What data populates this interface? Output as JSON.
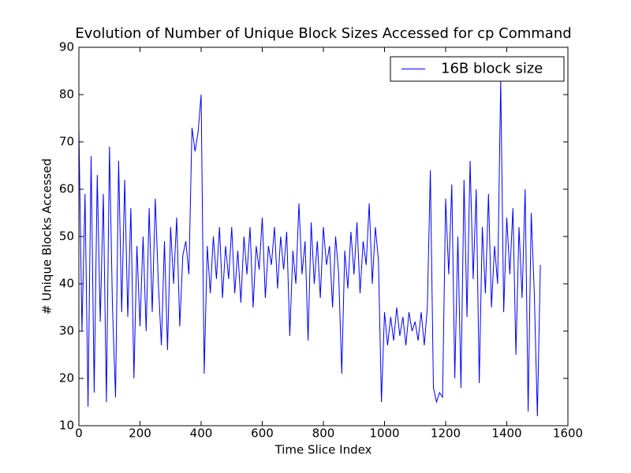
{
  "chart_data": {
    "type": "line",
    "title": "Evolution of Number of Unique Block Sizes Accessed for cp Command",
    "xlabel": "Time Slice Index",
    "ylabel": "# Unique Blocks Accessed",
    "x": [
      0,
      10,
      20,
      30,
      40,
      50,
      60,
      70,
      80,
      90,
      100,
      110,
      120,
      130,
      140,
      150,
      160,
      170,
      180,
      190,
      200,
      210,
      220,
      230,
      240,
      250,
      260,
      270,
      280,
      290,
      300,
      310,
      320,
      330,
      340,
      350,
      360,
      370,
      380,
      390,
      400,
      410,
      420,
      430,
      440,
      450,
      460,
      470,
      480,
      490,
      500,
      510,
      520,
      530,
      540,
      550,
      560,
      570,
      580,
      590,
      600,
      610,
      620,
      630,
      640,
      650,
      660,
      670,
      680,
      690,
      700,
      710,
      720,
      730,
      740,
      750,
      760,
      770,
      780,
      790,
      800,
      810,
      820,
      830,
      840,
      850,
      860,
      870,
      880,
      890,
      900,
      910,
      920,
      930,
      940,
      950,
      960,
      970,
      980,
      990,
      1000,
      1010,
      1020,
      1030,
      1040,
      1050,
      1060,
      1070,
      1080,
      1090,
      1100,
      1110,
      1120,
      1130,
      1140,
      1150,
      1160,
      1170,
      1180,
      1190,
      1200,
      1210,
      1220,
      1230,
      1240,
      1250,
      1260,
      1270,
      1280,
      1290,
      1300,
      1310,
      1320,
      1330,
      1340,
      1350,
      1360,
      1370,
      1380,
      1390,
      1400,
      1410,
      1420,
      1430,
      1440,
      1450,
      1460,
      1470,
      1480,
      1490,
      1500,
      1510
    ],
    "series": [
      {
        "name": "16B block size",
        "color": "#0000ff",
        "values": [
          73,
          30,
          59,
          14,
          67,
          17,
          63,
          32,
          59,
          15,
          69,
          35,
          16,
          66,
          34,
          62,
          33,
          56,
          20,
          48,
          31,
          50,
          30,
          56,
          34,
          58,
          40,
          27,
          49,
          26,
          52,
          40,
          54,
          31,
          46,
          49,
          42,
          73,
          68,
          72,
          80,
          21,
          48,
          38,
          50,
          41,
          52,
          37,
          48,
          41,
          52,
          38,
          47,
          36,
          50,
          42,
          52,
          35,
          48,
          43,
          54,
          37,
          48,
          44,
          52,
          39,
          50,
          43,
          51,
          29,
          47,
          40,
          57,
          42,
          49,
          28,
          53,
          40,
          49,
          37,
          52,
          44,
          48,
          35,
          50,
          42,
          21,
          47,
          39,
          51,
          42,
          53,
          38,
          49,
          44,
          57,
          40,
          52,
          45,
          15,
          34,
          27,
          33,
          28,
          35,
          29,
          33,
          27,
          34,
          30,
          32,
          28,
          34,
          27,
          35,
          64,
          18,
          15,
          17,
          16,
          58,
          42,
          61,
          20,
          50,
          18,
          62,
          33,
          66,
          41,
          60,
          19,
          52,
          38,
          59,
          35,
          48,
          40,
          83,
          34,
          54,
          42,
          56,
          25,
          52,
          37,
          60,
          13,
          55,
          38,
          12,
          44
        ]
      }
    ],
    "xlim": [
      0,
      1600
    ],
    "xticks": [
      0,
      200,
      400,
      600,
      800,
      1000,
      1200,
      1400,
      1600
    ],
    "ylim": [
      10,
      90
    ],
    "yticks": [
      10,
      20,
      30,
      40,
      50,
      60,
      70,
      80,
      90
    ],
    "legend": "upper right"
  }
}
